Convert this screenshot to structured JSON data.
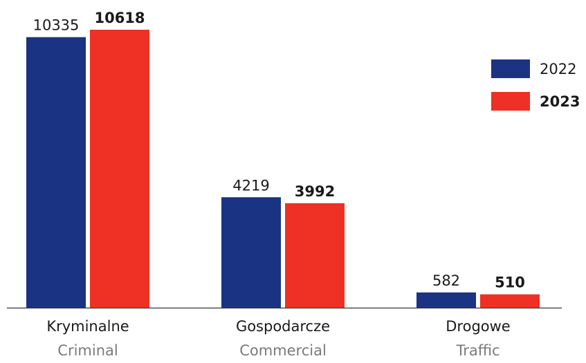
{
  "chart_data": {
    "type": "bar",
    "categories": [
      "Kryminalne",
      "Gospodarcze",
      "Drogowe"
    ],
    "category_translations": [
      "Criminal",
      "Commercial",
      "Traffic"
    ],
    "series": [
      {
        "name": "2022",
        "color": "#1b3383",
        "label_weight": "normal",
        "values": [
          10335,
          4219,
          582
        ]
      },
      {
        "name": "2023",
        "color": "#ee3124",
        "label_weight": "bold",
        "values": [
          10618,
          3992,
          510
        ]
      }
    ],
    "legend": "upper right"
  }
}
